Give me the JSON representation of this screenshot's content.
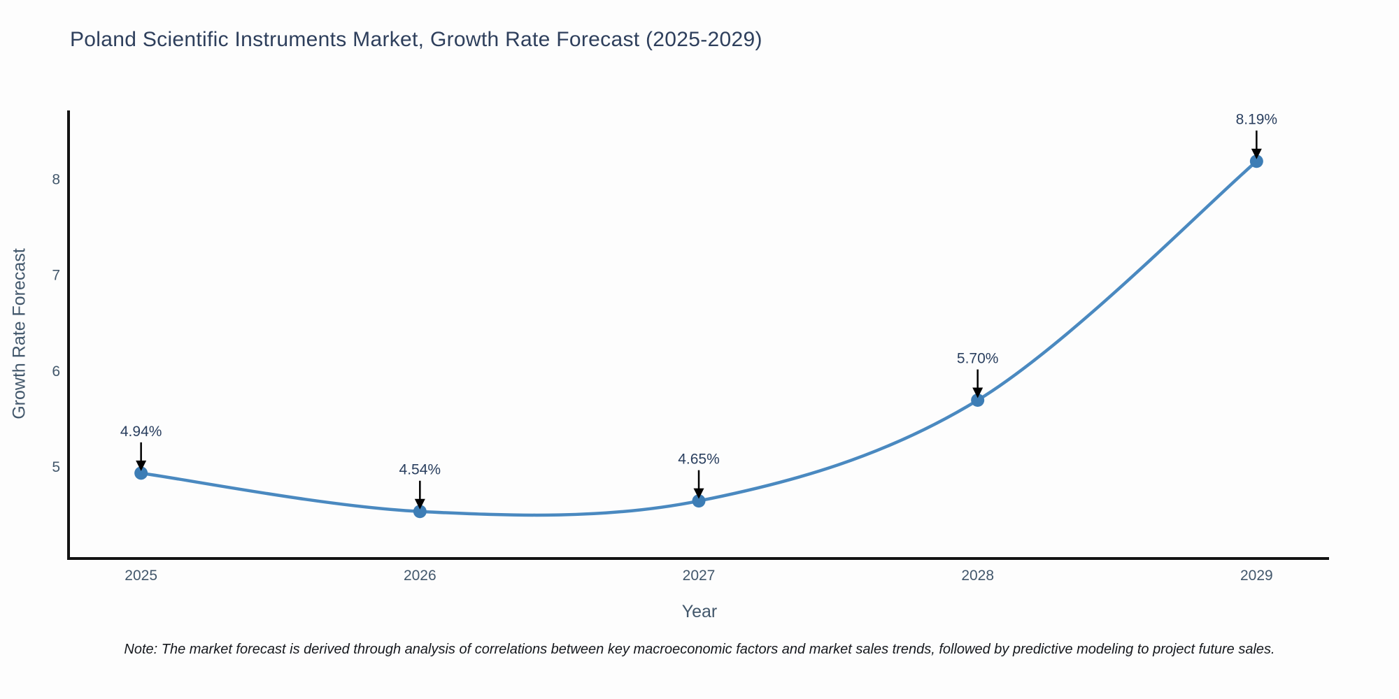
{
  "title": "Poland Scientific Instruments Market, Growth Rate Forecast (2025-2029)",
  "note": "Note: The market forecast is derived through analysis of correlations between key macroeconomic factors and market sales trends, followed by predictive modeling to project future sales.",
  "chart_data": {
    "type": "line",
    "title": "Poland Scientific Instruments Market, Growth Rate Forecast (2025-2029)",
    "xlabel": "Year",
    "ylabel": "Growth Rate Forecast",
    "x": [
      2025,
      2026,
      2027,
      2028,
      2029
    ],
    "series": [
      {
        "name": "Growth Rate Forecast",
        "values": [
          4.94,
          4.54,
          4.65,
          5.7,
          8.19
        ]
      }
    ],
    "point_labels": [
      "4.94%",
      "4.54%",
      "4.65%",
      "5.70%",
      "8.19%"
    ],
    "yticks": [
      5,
      6,
      7,
      8
    ],
    "xlim": [
      2024.74,
      2029.26
    ],
    "ylim": [
      4.05,
      8.72
    ],
    "grid": false,
    "legend_position": "none",
    "line_shape": "spline",
    "colors": {
      "line": "#4a89c0",
      "marker": "#3d7db5",
      "annotation_text": "#2a3f5f",
      "annotation_arrow": "#000000",
      "axis_spine": "#131313",
      "title_text": "#2e3f5c",
      "tick_text": "#42576b"
    }
  }
}
